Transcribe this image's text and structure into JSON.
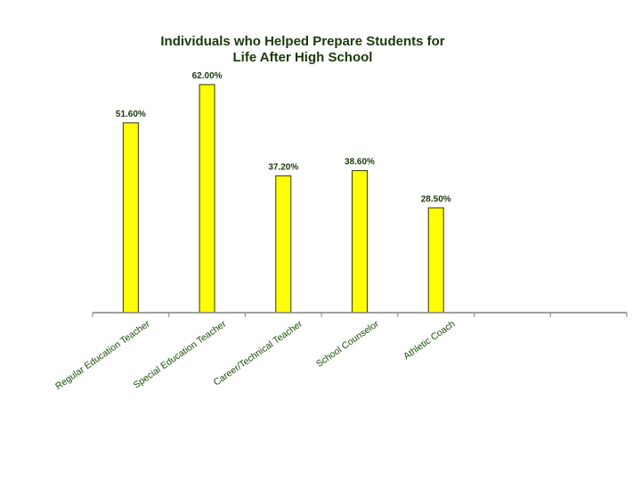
{
  "chart_data": {
    "type": "bar",
    "title_lines": [
      "Individuals who Helped Prepare Students for",
      "Life After High School"
    ],
    "categories": [
      "Regular Education Teacher",
      "Special Education Teacher",
      "Career/Technical Teacher",
      "School Counselor",
      "Athletic Coach",
      "",
      ""
    ],
    "values": [
      51.6,
      62.0,
      37.2,
      38.6,
      28.5,
      null,
      null
    ],
    "value_labels": [
      "51.60%",
      "62.00%",
      "37.20%",
      "38.60%",
      "28.50%",
      "",
      ""
    ],
    "ylim": [
      0,
      100
    ],
    "xlabel": "",
    "ylabel": "",
    "grid": false,
    "legend": "none",
    "colors": {
      "bar_fill": "#ffff00",
      "bar_stroke": "#333300",
      "text": "#1a3a0a",
      "axis": "#808080"
    }
  }
}
